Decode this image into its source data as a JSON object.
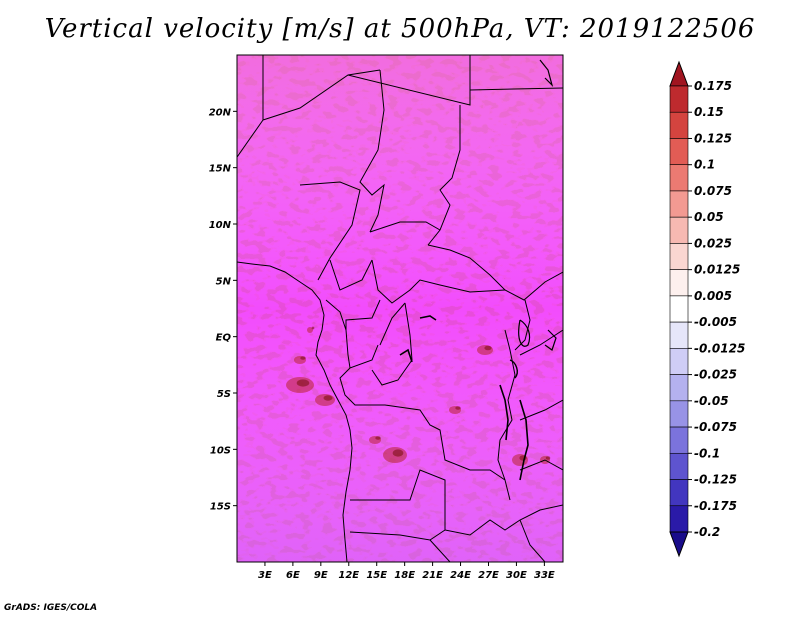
{
  "title": "Vertical velocity [m/s] at 500hPa, VT: 2019122506",
  "credit": "GrADS: IGES/COLA",
  "map": {
    "lat_range": [
      -20,
      25
    ],
    "lon_range": [
      0,
      35
    ],
    "lat_labels": [
      "20N",
      "15N",
      "10N",
      "5N",
      "EQ",
      "5S",
      "10S",
      "15S"
    ],
    "lat_values": [
      20,
      15,
      10,
      5,
      0,
      -5,
      -10,
      -15
    ],
    "lon_labels": [
      "3E",
      "6E",
      "9E",
      "12E",
      "15E",
      "18E",
      "21E",
      "24E",
      "27E",
      "30E",
      "33E"
    ],
    "lon_values": [
      3,
      6,
      9,
      12,
      15,
      18,
      21,
      24,
      27,
      30,
      33
    ]
  },
  "colorbar": {
    "levels": [
      "0.175",
      "0.15",
      "0.125",
      "0.1",
      "0.075",
      "0.05",
      "0.025",
      "0.0125",
      "0.005",
      "-0.005",
      "-0.0125",
      "-0.025",
      "-0.05",
      "-0.075",
      "-0.1",
      "-0.125",
      "-0.175",
      "-0.2"
    ],
    "colors": [
      "#a01520",
      "#be2a2e",
      "#d4443f",
      "#e25c55",
      "#ec7a72",
      "#f39a92",
      "#f7b9b2",
      "#fad6d1",
      "#fdf0ee",
      "#ffffff",
      "#e6e6fa",
      "#cfcdf6",
      "#b4b1ef",
      "#9893e6",
      "#7b73dc",
      "#5e54cf",
      "#4236bf",
      "#2a1aa8",
      "#190c8a"
    ]
  }
}
